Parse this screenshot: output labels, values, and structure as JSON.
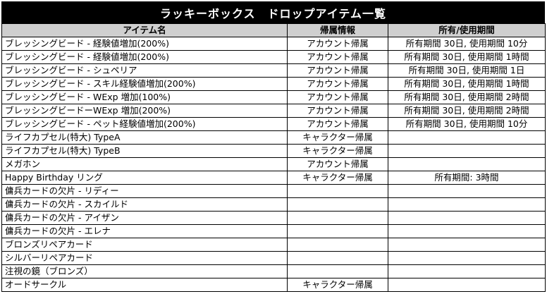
{
  "title": "ラッキーボックス　ドロップアイテム一覧",
  "headers": [
    "アイテム名",
    "帰属情報",
    "所有/使用期間"
  ],
  "rows": [
    [
      "ブレッシングビード - 経験値増加(200%)",
      "アカウント帰属",
      "所有期間 30日, 使用期間 10分"
    ],
    [
      "ブレッシングビード - 経験値増加(200%)",
      "アカウント帰属",
      "所有期間 30日, 使用期間 1時間"
    ],
    [
      "ブレッシングビード - シュペリア",
      "アカウント帰属",
      "所有期間 30日, 使用期間 1日"
    ],
    [
      "ブレッシングビード - スキル経験値増加(200%)",
      "アカウント帰属",
      "所有期間 30日, 使用期間 1時間"
    ],
    [
      "ブレッシングビード - WExp 増加(100%)",
      "アカウント帰属",
      "所有期間 30日, 使用期間 2時間"
    ],
    [
      "ブレッシングビードーWExp 増加(200%)",
      "アカウント帰属",
      "所有期間 30日, 使用期間 2時間"
    ],
    [
      "ブレッシングビード - ペット経験値増加(200%)",
      "アカウント帰属",
      "所有期間 30日, 使用期間 10分"
    ],
    [
      "ライフカプセル(特大) TypeA",
      "キャラクター帰属",
      ""
    ],
    [
      "ライフカプセル(特大) TypeB",
      "キャラクター帰属",
      ""
    ],
    [
      "メガホン",
      "アカウント帰属",
      ""
    ],
    [
      "Happy Birthday リング",
      "キャラクター帰属",
      "所有期間: 3時間"
    ],
    [
      "傭兵カードの欠片 - リディー",
      "",
      ""
    ],
    [
      "傭兵カードの欠片 - スカイルド",
      "",
      ""
    ],
    [
      "傭兵カードの欠片 - アイザン",
      "",
      ""
    ],
    [
      "傭兵カードの欠片 - エレナ",
      "",
      ""
    ],
    [
      "ブロンズリペアカード",
      "",
      ""
    ],
    [
      "シルバーリペアカード",
      "",
      ""
    ],
    [
      "注視の鏡（ブロンズ）",
      "",
      ""
    ],
    [
      "オードサークル",
      "キャラクター帰属",
      ""
    ]
  ]
}
